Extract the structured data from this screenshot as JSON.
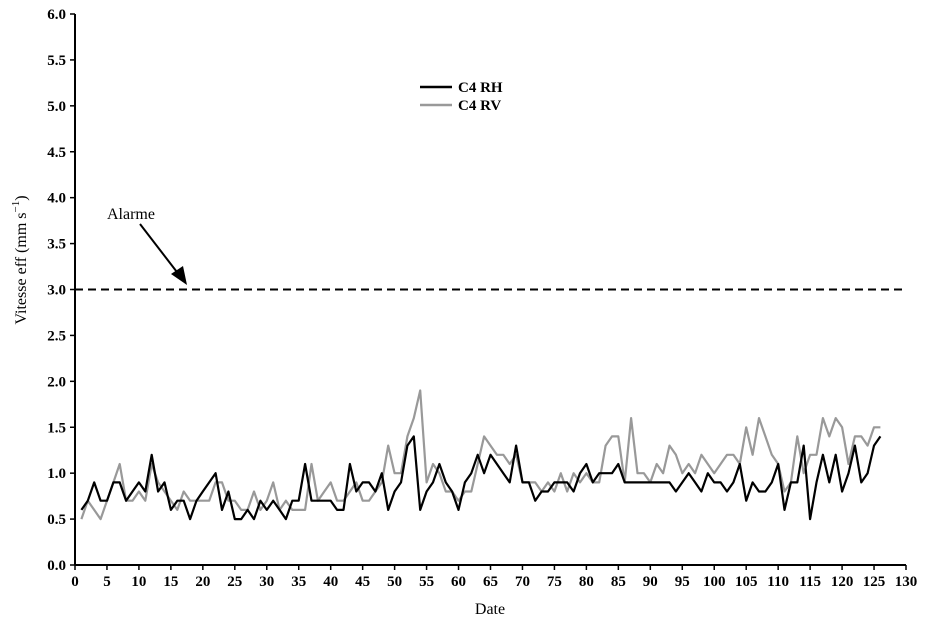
{
  "chart_data": {
    "type": "line",
    "xlabel": "Date",
    "ylabel": "Vitesse eff (mm s",
    "ylabel_superscript": "−1",
    "ylabel_suffix": ")",
    "xlim": [
      0,
      130
    ],
    "ylim": [
      0,
      6
    ],
    "x_ticks": [
      0,
      5,
      10,
      15,
      20,
      25,
      30,
      35,
      40,
      45,
      50,
      55,
      60,
      65,
      70,
      75,
      80,
      85,
      90,
      95,
      100,
      105,
      110,
      115,
      120,
      125,
      130
    ],
    "y_ticks": [
      "0.0",
      "0.5",
      "1.0",
      "1.5",
      "2.0",
      "2.5",
      "3.0",
      "3.5",
      "4.0",
      "4.5",
      "5.0",
      "5.5",
      "6.0"
    ],
    "grid": false,
    "legend_position": "top-center",
    "threshold": {
      "y": 3.0,
      "label": "Alarme",
      "style": "dashed",
      "color": "#000000"
    },
    "series": [
      {
        "name": "C4 RH",
        "color": "#000000",
        "x": [
          1,
          2,
          3,
          4,
          5,
          6,
          7,
          8,
          9,
          10,
          11,
          12,
          13,
          14,
          15,
          16,
          17,
          18,
          19,
          20,
          21,
          22,
          23,
          24,
          25,
          26,
          27,
          28,
          29,
          30,
          31,
          32,
          33,
          34,
          35,
          36,
          37,
          38,
          39,
          40,
          41,
          42,
          43,
          44,
          45,
          46,
          47,
          48,
          49,
          50,
          51,
          52,
          53,
          54,
          55,
          56,
          57,
          58,
          59,
          60,
          61,
          62,
          63,
          64,
          65,
          66,
          67,
          68,
          69,
          70,
          71,
          72,
          73,
          74,
          75,
          76,
          77,
          78,
          79,
          80,
          81,
          82,
          83,
          84,
          85,
          86,
          87,
          88,
          89,
          90,
          91,
          92,
          93,
          94,
          95,
          96,
          97,
          98,
          99,
          100,
          101,
          102,
          103,
          104,
          105,
          106,
          107,
          108,
          109,
          110,
          111,
          112,
          113,
          114,
          115,
          116,
          117,
          118,
          119,
          120,
          121,
          122,
          123,
          124,
          125,
          126
        ],
        "values": [
          0.6,
          0.7,
          0.9,
          0.7,
          0.7,
          0.9,
          0.9,
          0.7,
          0.8,
          0.9,
          0.8,
          1.2,
          0.8,
          0.9,
          0.6,
          0.7,
          0.7,
          0.5,
          0.7,
          0.8,
          0.9,
          1.0,
          0.6,
          0.8,
          0.5,
          0.5,
          0.6,
          0.5,
          0.7,
          0.6,
          0.7,
          0.6,
          0.5,
          0.7,
          0.7,
          1.1,
          0.7,
          0.7,
          0.7,
          0.7,
          0.6,
          0.6,
          1.1,
          0.8,
          0.9,
          0.9,
          0.8,
          1.0,
          0.6,
          0.8,
          0.9,
          1.3,
          1.4,
          0.6,
          0.8,
          0.9,
          1.1,
          0.9,
          0.8,
          0.6,
          0.9,
          1.0,
          1.2,
          1.0,
          1.2,
          1.1,
          1.0,
          0.9,
          1.3,
          0.9,
          0.9,
          0.7,
          0.8,
          0.8,
          0.9,
          0.9,
          0.9,
          0.8,
          1.0,
          1.1,
          0.9,
          1.0,
          1.0,
          1.0,
          1.1,
          0.9,
          0.9,
          0.9,
          0.9,
          0.9,
          0.9,
          0.9,
          0.9,
          0.8,
          0.9,
          1.0,
          0.9,
          0.8,
          1.0,
          0.9,
          0.9,
          0.8,
          0.9,
          1.1,
          0.7,
          0.9,
          0.8,
          0.8,
          0.9,
          1.1,
          0.6,
          0.9,
          0.9,
          1.3,
          0.5,
          0.9,
          1.2,
          0.9,
          1.2,
          0.8,
          1.0,
          1.3,
          0.9,
          1.0,
          1.3,
          1.4
        ]
      },
      {
        "name": "C4 RV",
        "color": "#999999",
        "x": [
          1,
          2,
          3,
          4,
          5,
          6,
          7,
          8,
          9,
          10,
          11,
          12,
          13,
          14,
          15,
          16,
          17,
          18,
          19,
          20,
          21,
          22,
          23,
          24,
          25,
          26,
          27,
          28,
          29,
          30,
          31,
          32,
          33,
          34,
          35,
          36,
          37,
          38,
          39,
          40,
          41,
          42,
          43,
          44,
          45,
          46,
          47,
          48,
          49,
          50,
          51,
          52,
          53,
          54,
          55,
          56,
          57,
          58,
          59,
          60,
          61,
          62,
          63,
          64,
          65,
          66,
          67,
          68,
          69,
          70,
          71,
          72,
          73,
          74,
          75,
          76,
          77,
          78,
          79,
          80,
          81,
          82,
          83,
          84,
          85,
          86,
          87,
          88,
          89,
          90,
          91,
          92,
          93,
          94,
          95,
          96,
          97,
          98,
          99,
          100,
          101,
          102,
          103,
          104,
          105,
          106,
          107,
          108,
          109,
          110,
          111,
          112,
          113,
          114,
          115,
          116,
          117,
          118,
          119,
          120,
          121,
          122,
          123,
          124,
          125,
          126
        ],
        "values": [
          0.5,
          0.7,
          0.6,
          0.5,
          0.7,
          0.9,
          1.1,
          0.7,
          0.7,
          0.8,
          0.7,
          1.1,
          0.9,
          0.8,
          0.7,
          0.6,
          0.8,
          0.7,
          0.7,
          0.7,
          0.7,
          0.9,
          0.9,
          0.7,
          0.7,
          0.6,
          0.6,
          0.8,
          0.6,
          0.7,
          0.9,
          0.6,
          0.7,
          0.6,
          0.6,
          0.6,
          1.1,
          0.7,
          0.8,
          0.9,
          0.7,
          0.7,
          0.8,
          0.9,
          0.7,
          0.7,
          0.8,
          0.9,
          1.3,
          1.0,
          1.0,
          1.4,
          1.6,
          1.9,
          0.9,
          1.1,
          1.0,
          0.8,
          0.8,
          0.7,
          0.8,
          0.8,
          1.1,
          1.4,
          1.3,
          1.2,
          1.2,
          1.1,
          1.2,
          0.9,
          0.9,
          0.9,
          0.8,
          0.9,
          0.8,
          1.0,
          0.8,
          1.0,
          0.9,
          1.0,
          0.9,
          0.9,
          1.3,
          1.4,
          1.4,
          0.9,
          1.6,
          1.0,
          1.0,
          0.9,
          1.1,
          1.0,
          1.3,
          1.2,
          1.0,
          1.1,
          1.0,
          1.2,
          1.1,
          1.0,
          1.1,
          1.2,
          1.2,
          1.1,
          1.5,
          1.2,
          1.6,
          1.4,
          1.2,
          1.1,
          0.8,
          0.9,
          1.4,
          1.0,
          1.2,
          1.2,
          1.6,
          1.4,
          1.6,
          1.5,
          1.1,
          1.4,
          1.4,
          1.3,
          1.5,
          1.5
        ]
      }
    ]
  }
}
